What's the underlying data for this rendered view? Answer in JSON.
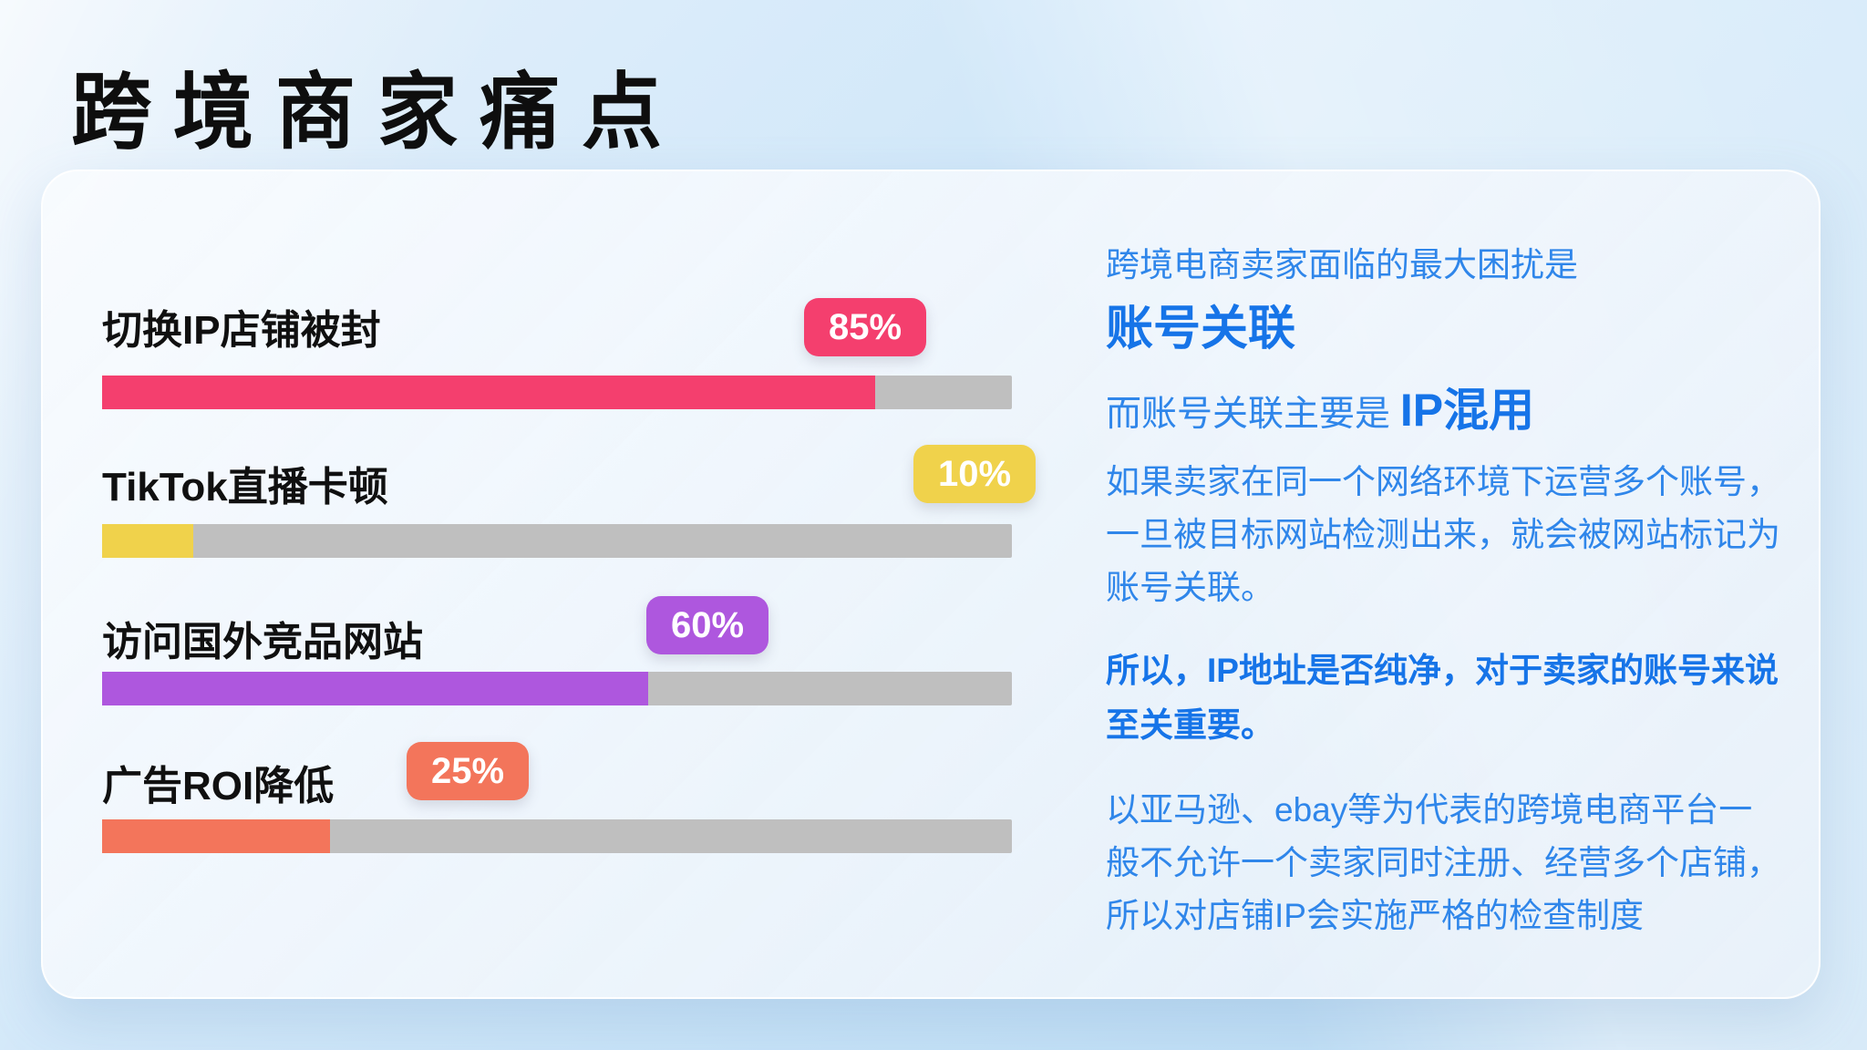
{
  "page_title": "跨境商家痛点",
  "chart_data": {
    "type": "bar",
    "orientation": "horizontal",
    "categories": [
      "切换IP店铺被封",
      "TikTok直播卡顿",
      "访问国外竞品网站",
      "广告ROI降低"
    ],
    "values": [
      85,
      10,
      60,
      25
    ],
    "value_labels": [
      "85%",
      "10%",
      "60%",
      "25%"
    ],
    "bar_colors": [
      "#f43f6e",
      "#f0d24b",
      "#ae57de",
      "#f3755b"
    ],
    "track_color": "#bfbfbf",
    "xlim": [
      0,
      100
    ],
    "grid": false,
    "legend": "none"
  },
  "panel": {
    "intro": "跨境电商卖家面临的最大困扰是",
    "headline": "账号关联",
    "sub_prefix": "而账号关联主要是 ",
    "sub_highlight": "IP混用",
    "para1": "如果卖家在同一个网络环境下运营多个账号，\n一旦被目标网站检测出来，就会被网站标记为\n账号关联。",
    "para2": "所以，IP地址是否纯净，对于卖家的账号来说\n至关重要。",
    "para3": "以亚马逊、ebay等为代表的跨境电商平台一\n般不允许一个卖家同时注册、经营多个店铺，\n所以对店铺IP会实施严格的检查制度"
  },
  "colors": {
    "accent_blue_regular": "#2f86ea",
    "accent_blue_bold": "#1674e8",
    "title_black": "#0e0e0e",
    "card_bg": "#f2f7fc",
    "page_bg": "#c9e3f7"
  }
}
